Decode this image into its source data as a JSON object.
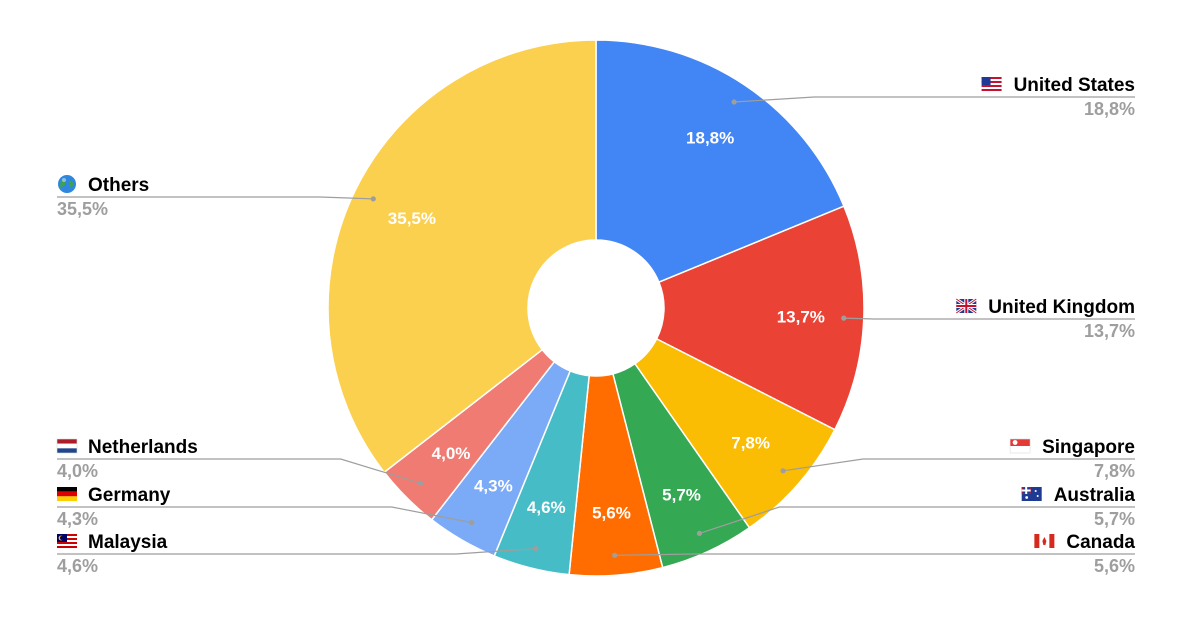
{
  "chart_data": {
    "type": "pie",
    "donut": true,
    "legend_placement": "callouts-left-right",
    "slices": [
      {
        "label": "United States",
        "value": 18.8,
        "display": "18,8%",
        "color": "#4285f4",
        "flag": "us-flag-icon"
      },
      {
        "label": "United Kingdom",
        "value": 13.7,
        "display": "13,7%",
        "color": "#ea4335",
        "flag": "uk-flag-icon"
      },
      {
        "label": "Singapore",
        "value": 7.8,
        "display": "7,8%",
        "color": "#fbbc04",
        "flag": "sg-flag-icon"
      },
      {
        "label": "Australia",
        "value": 5.7,
        "display": "5,7%",
        "color": "#34a853",
        "flag": "au-flag-icon"
      },
      {
        "label": "Canada",
        "value": 5.6,
        "display": "5,6%",
        "color": "#ff6d01",
        "flag": "ca-flag-icon"
      },
      {
        "label": "Malaysia",
        "value": 4.6,
        "display": "4,6%",
        "color": "#46bdc6",
        "flag": "my-flag-icon"
      },
      {
        "label": "Germany",
        "value": 4.3,
        "display": "4,3%",
        "color": "#7baaf7",
        "flag": "de-flag-icon"
      },
      {
        "label": "Netherlands",
        "value": 4.0,
        "display": "4,0%",
        "color": "#f07b72",
        "flag": "nl-flag-icon"
      },
      {
        "label": "Others",
        "value": 35.5,
        "display": "35,5%",
        "color": "#fcd04f",
        "flag": "globe-icon"
      }
    ]
  }
}
